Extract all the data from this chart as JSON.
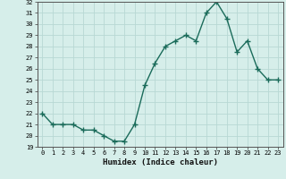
{
  "x": [
    0,
    1,
    2,
    3,
    4,
    5,
    6,
    7,
    8,
    9,
    10,
    11,
    12,
    13,
    14,
    15,
    16,
    17,
    18,
    19,
    20,
    21,
    22,
    23
  ],
  "y": [
    22,
    21,
    21,
    21,
    20.5,
    20.5,
    20,
    19.5,
    19.5,
    21,
    24.5,
    26.5,
    28,
    28.5,
    29,
    28.5,
    31,
    32,
    30.5,
    27.5,
    28.5,
    26,
    25,
    25
  ],
  "title": "",
  "xlabel": "Humidex (Indice chaleur)",
  "ylabel": "",
  "ylim": [
    19,
    32
  ],
  "xlim": [
    -0.5,
    23.5
  ],
  "bg_color": "#d6eeea",
  "line_color": "#1a6b5a",
  "grid_color": "#b8d8d4",
  "yticks": [
    19,
    20,
    21,
    22,
    23,
    24,
    25,
    26,
    27,
    28,
    29,
    30,
    31,
    32
  ],
  "xticks": [
    0,
    1,
    2,
    3,
    4,
    5,
    6,
    7,
    8,
    9,
    10,
    11,
    12,
    13,
    14,
    15,
    16,
    17,
    18,
    19,
    20,
    21,
    22,
    23
  ]
}
